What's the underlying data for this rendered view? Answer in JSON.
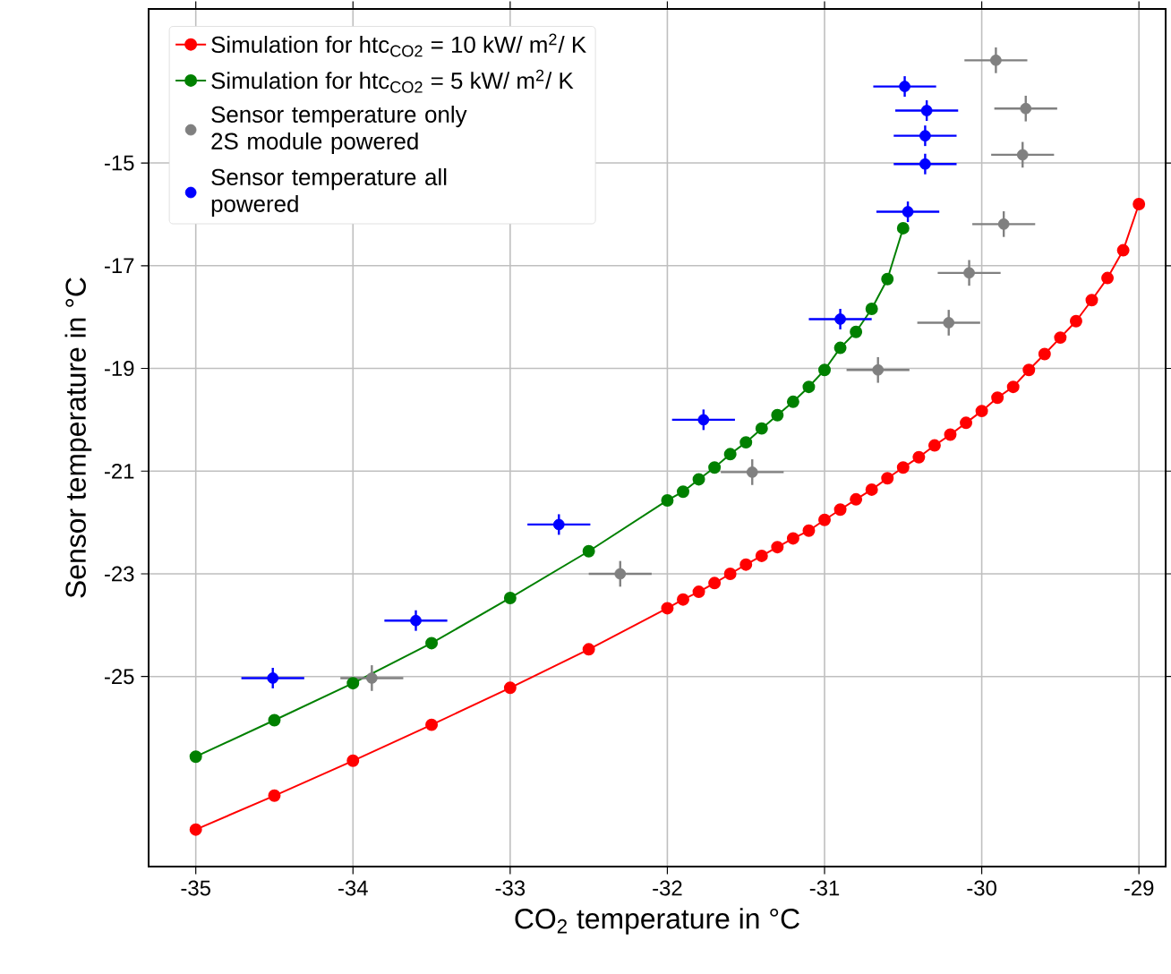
{
  "chart_data": {
    "type": "line",
    "xlabel": "CO$_{2}$ temperature in °C",
    "ylabel": "Sensor temperature in °C",
    "xlim": [
      -35.3,
      -28.83
    ],
    "ylim": [
      -28.7,
      -12
    ],
    "xticks": [
      -35,
      -34,
      -33,
      -32,
      -31,
      -30,
      -29
    ],
    "yticks": [
      -25,
      -23,
      -21,
      -19,
      -17,
      -15
    ],
    "grid": true,
    "legend": "top left",
    "line_style": "solid",
    "series": [
      {
        "name": "Simulation for htc$_{CO2}$ = 10 kW/ m$^{2}$/ K",
        "color": "#ff0000",
        "marker": "circle",
        "x": [
          -35,
          -34.5,
          -34,
          -33.5,
          -33,
          -32.5,
          -32.0,
          -31.9,
          -31.8,
          -31.7,
          -31.6,
          -31.5,
          -31.4,
          -31.3,
          -31.2,
          -31.1,
          -31.0,
          -30.9,
          -30.8,
          -30.7,
          -30.6,
          -30.5,
          -30.4,
          -30.3,
          -30.2,
          -30.1,
          -30.0,
          -29.9,
          -29.8,
          -29.7,
          -29.6,
          -29.5,
          -29.4,
          -29.3,
          -29.2,
          -29.1,
          -29.0
        ],
        "values": [
          -27.98,
          -27.32,
          -26.64,
          -25.94,
          -25.22,
          -24.47,
          -23.67,
          -23.5,
          -23.35,
          -23.18,
          -23.0,
          -22.82,
          -22.65,
          -22.48,
          -22.31,
          -22.16,
          -21.95,
          -21.75,
          -21.55,
          -21.36,
          -21.14,
          -20.93,
          -20.73,
          -20.5,
          -20.29,
          -20.06,
          -19.83,
          -19.57,
          -19.36,
          -19.03,
          -18.72,
          -18.4,
          -18.08,
          -17.67,
          -17.24,
          -16.7,
          -15.8
        ]
      },
      {
        "name": "Simulation for htc$_{CO2}$ = 5 kW/ m$^{2}$/ K",
        "color": "#008000",
        "marker": "circle",
        "x": [
          -35,
          -34.5,
          -34,
          -33.5,
          -33,
          -32.5,
          -32.0,
          -31.9,
          -31.8,
          -31.7,
          -31.6,
          -31.5,
          -31.4,
          -31.3,
          -31.2,
          -31.1,
          -31.0,
          -30.9,
          -30.8,
          -30.7,
          -30.6,
          -30.5
        ],
        "values": [
          -26.56,
          -25.85,
          -25.13,
          -24.35,
          -23.47,
          -22.56,
          -21.57,
          -21.4,
          -21.16,
          -20.93,
          -20.67,
          -20.44,
          -20.17,
          -19.91,
          -19.65,
          -19.36,
          -19.03,
          -18.6,
          -18.29,
          -17.84,
          -17.26,
          -16.27
        ]
      },
      {
        "name": "Sensor temperature only 2S module powered",
        "color": "#808080",
        "type": "scatter",
        "marker": "circle",
        "x": [
          -33.88,
          -32.3,
          -31.46,
          -30.66,
          -30.21,
          -30.08,
          -29.86,
          -29.74,
          -29.72,
          -29.91
        ],
        "values": [
          -25.03,
          -23.0,
          -21.02,
          -19.03,
          -18.11,
          -17.14,
          -16.19,
          -14.84,
          -13.94,
          -13.0
        ],
        "errors": [
          0.25,
          0.25,
          0.25,
          0.25,
          0.25,
          0.25,
          0.25,
          0.25,
          0.25,
          0.25
        ],
        "xerrors": [
          0.2,
          0.2,
          0.2,
          0.2,
          0.2,
          0.2,
          0.2,
          0.2,
          0.2,
          0.2
        ]
      },
      {
        "name": "Sensor temperature all powered",
        "color": "#0000ff",
        "type": "scatter",
        "marker": "circle",
        "x": [
          -34.51,
          -33.6,
          -32.69,
          -31.77,
          -30.9,
          -30.47,
          -30.36,
          -30.36,
          -30.35,
          -30.49
        ],
        "values": [
          -25.03,
          -23.91,
          -22.04,
          -20.0,
          -18.04,
          -15.95,
          -15.02,
          -14.47,
          -13.98,
          -13.51
        ],
        "errors": [
          0.2,
          0.2,
          0.2,
          0.2,
          0.2,
          0.2,
          0.2,
          0.2,
          0.2,
          0.2
        ],
        "xerrors": [
          0.2,
          0.2,
          0.2,
          0.2,
          0.2,
          0.2,
          0.2,
          0.2,
          0.2,
          0.2
        ]
      }
    ]
  }
}
